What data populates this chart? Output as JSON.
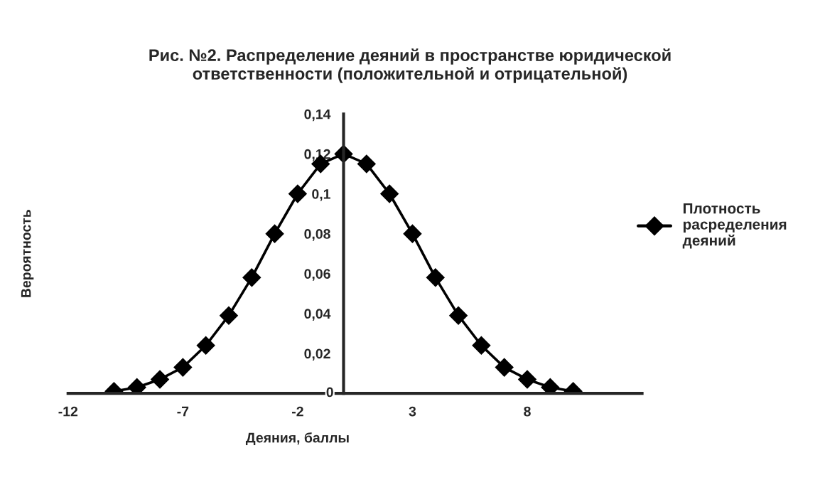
{
  "chart_data": {
    "type": "line",
    "title": "Рис. №2. Распределение деяний в пространстве юридической\nответственности (положительной и отрицательной)",
    "xlabel": "Деяния, баллы",
    "ylabel": "Вероятность",
    "x": [
      -10,
      -9,
      -8,
      -7,
      -6,
      -5,
      -4,
      -3,
      -2,
      -1,
      0,
      1,
      2,
      3,
      4,
      5,
      6,
      7,
      8,
      9,
      10
    ],
    "series": [
      {
        "name": "Плотность расределения деяний",
        "color": "#000000",
        "values": [
          0.001,
          0.003,
          0.007,
          0.013,
          0.024,
          0.039,
          0.058,
          0.08,
          0.1,
          0.115,
          0.12,
          0.115,
          0.1,
          0.08,
          0.058,
          0.039,
          0.024,
          0.013,
          0.007,
          0.003,
          0.001
        ]
      }
    ],
    "xlim": [
      -12,
      13
    ],
    "xticks": [
      -12,
      -7,
      -2,
      3,
      8
    ],
    "ylim": [
      0,
      0.14
    ],
    "yticks": [
      {
        "value": 0,
        "label": "0"
      },
      {
        "value": 0.02,
        "label": "0,02"
      },
      {
        "value": 0.04,
        "label": "0,04"
      },
      {
        "value": 0.06,
        "label": "0,06"
      },
      {
        "value": 0.08,
        "label": "0,08"
      },
      {
        "value": 0.1,
        "label": "0,1"
      },
      {
        "value": 0.12,
        "label": "0,12"
      },
      {
        "value": 0.14,
        "label": "0,14"
      }
    ],
    "grid": false,
    "legend": "right",
    "marker": "diamond",
    "line_style": "solid"
  }
}
